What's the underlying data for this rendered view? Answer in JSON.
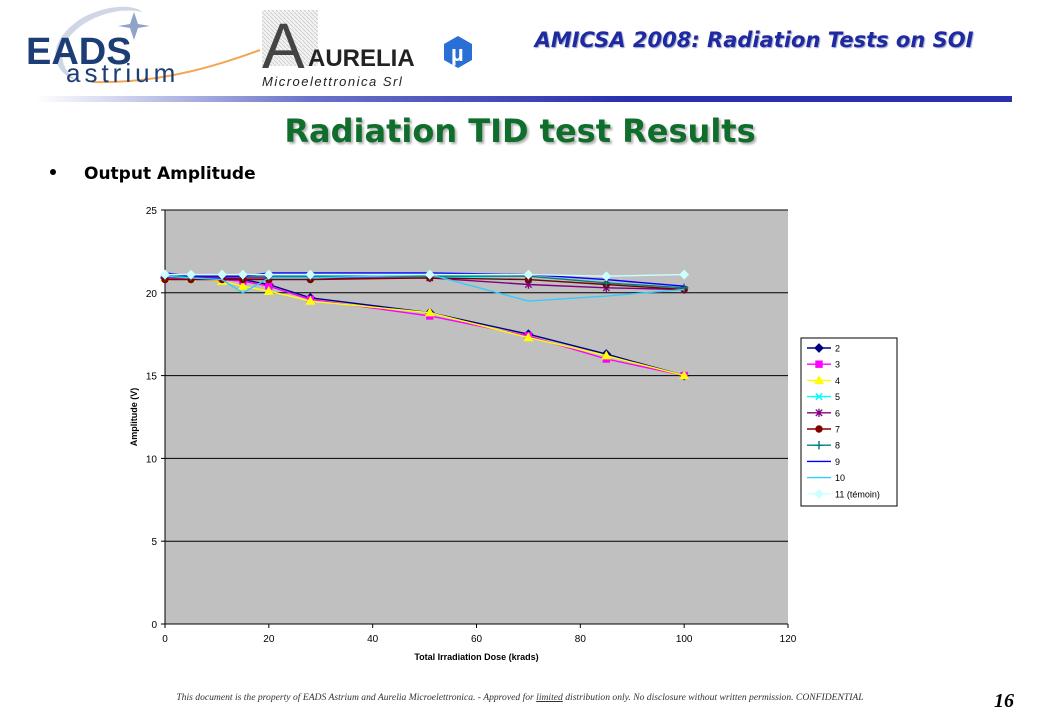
{
  "header": {
    "eads_logo_top": "EADS",
    "eads_logo_bottom": "astrium",
    "aurelia_letter": "A",
    "aurelia_name": "AURELIA",
    "aurelia_sub": "Microelettronica Srl",
    "aurelia_mu": "µ",
    "title": "AMICSA 2008: Radiation Tests on SOI"
  },
  "slide": {
    "title": "Radiation TID test Results",
    "bullet": "Output Amplitude"
  },
  "footer": {
    "text_before": "This document is the property of EADS Astrium and Aurelia Microelettronica. - Approved for ",
    "text_underlined": "limited",
    "text_after": " distribution only. No disclosure without written permission. CONFIDENTIAL",
    "page_number": "16"
  },
  "colors": {
    "header_title": "#1f2aa0",
    "slide_title": "#0f6e2c",
    "plot_bg": "#c0c0c0"
  },
  "chart_data": {
    "type": "line",
    "title": "",
    "xlabel": "Total Irradiation Dose (krads)",
    "ylabel": "Amplitude (V)",
    "xlim": [
      0,
      120
    ],
    "ylim": [
      0,
      25
    ],
    "xticks": [
      0,
      20,
      40,
      60,
      80,
      100,
      120
    ],
    "yticks": [
      0,
      5,
      10,
      15,
      20,
      25
    ],
    "grid": "horizontal major",
    "legend_position": "right",
    "series": [
      {
        "name": "2",
        "color": "#000080",
        "marker": "diamond",
        "x": [
          0,
          5,
          11,
          15,
          20,
          28,
          51,
          70,
          85,
          100
        ],
        "y": [
          20.9,
          20.9,
          20.9,
          20.8,
          20.5,
          19.7,
          18.8,
          17.5,
          16.3,
          15.0
        ]
      },
      {
        "name": "3",
        "color": "#ff00ff",
        "marker": "square",
        "x": [
          0,
          5,
          11,
          15,
          20,
          28,
          51,
          70,
          85,
          100
        ],
        "y": [
          20.9,
          20.9,
          20.8,
          20.7,
          20.4,
          19.6,
          18.6,
          17.4,
          16.0,
          15.0
        ]
      },
      {
        "name": "4",
        "color": "#ffff00",
        "marker": "triangle",
        "x": [
          0,
          5,
          11,
          15,
          20,
          28,
          51,
          70,
          85,
          100
        ],
        "y": [
          20.9,
          20.9,
          20.7,
          20.4,
          20.1,
          19.5,
          18.8,
          17.3,
          16.2,
          15.0
        ]
      },
      {
        "name": "5",
        "color": "#00ffff",
        "marker": "x",
        "x": [
          0,
          5,
          11,
          15,
          20,
          28,
          51,
          70,
          85,
          100
        ],
        "y": [
          21.0,
          21.0,
          21.0,
          21.0,
          21.0,
          21.0,
          21.0,
          20.8,
          20.5,
          20.2
        ]
      },
      {
        "name": "6",
        "color": "#800080",
        "marker": "star",
        "x": [
          0,
          5,
          11,
          15,
          20,
          28,
          51,
          70,
          85,
          100
        ],
        "y": [
          20.9,
          20.9,
          20.9,
          20.9,
          20.9,
          20.9,
          20.9,
          20.5,
          20.3,
          20.2
        ]
      },
      {
        "name": "7",
        "color": "#800000",
        "marker": "circle",
        "x": [
          0,
          5,
          11,
          15,
          20,
          28,
          51,
          70,
          85,
          100
        ],
        "y": [
          20.8,
          20.8,
          20.8,
          20.8,
          20.8,
          20.8,
          20.9,
          20.8,
          20.5,
          20.2
        ]
      },
      {
        "name": "8",
        "color": "#008080",
        "marker": "plus",
        "x": [
          0,
          5,
          11,
          15,
          20,
          28,
          51,
          70,
          85,
          100
        ],
        "y": [
          21.0,
          21.0,
          21.0,
          21.0,
          21.0,
          21.0,
          21.0,
          21.0,
          20.6,
          20.3
        ]
      },
      {
        "name": "9",
        "color": "#0000ff",
        "marker": "none",
        "x": [
          0,
          5,
          11,
          15,
          20,
          28,
          51,
          70,
          85,
          100
        ],
        "y": [
          21.2,
          21.0,
          21.0,
          21.0,
          21.2,
          21.2,
          21.2,
          21.1,
          20.8,
          20.4
        ]
      },
      {
        "name": "10",
        "color": "#33ccff",
        "marker": "none",
        "x": [
          0,
          5,
          11,
          15,
          20,
          28,
          51,
          70,
          85,
          100
        ],
        "y": [
          21.0,
          20.9,
          20.8,
          20.0,
          20.9,
          20.9,
          21.1,
          19.5,
          19.8,
          20.2
        ]
      },
      {
        "name": "11 (témoin)",
        "color": "#ccffff",
        "marker": "diamond",
        "x": [
          0,
          5,
          11,
          15,
          20,
          28,
          51,
          70,
          85,
          100
        ],
        "y": [
          21.1,
          21.1,
          21.1,
          21.1,
          21.1,
          21.1,
          21.1,
          21.1,
          21.0,
          21.1
        ]
      }
    ]
  }
}
